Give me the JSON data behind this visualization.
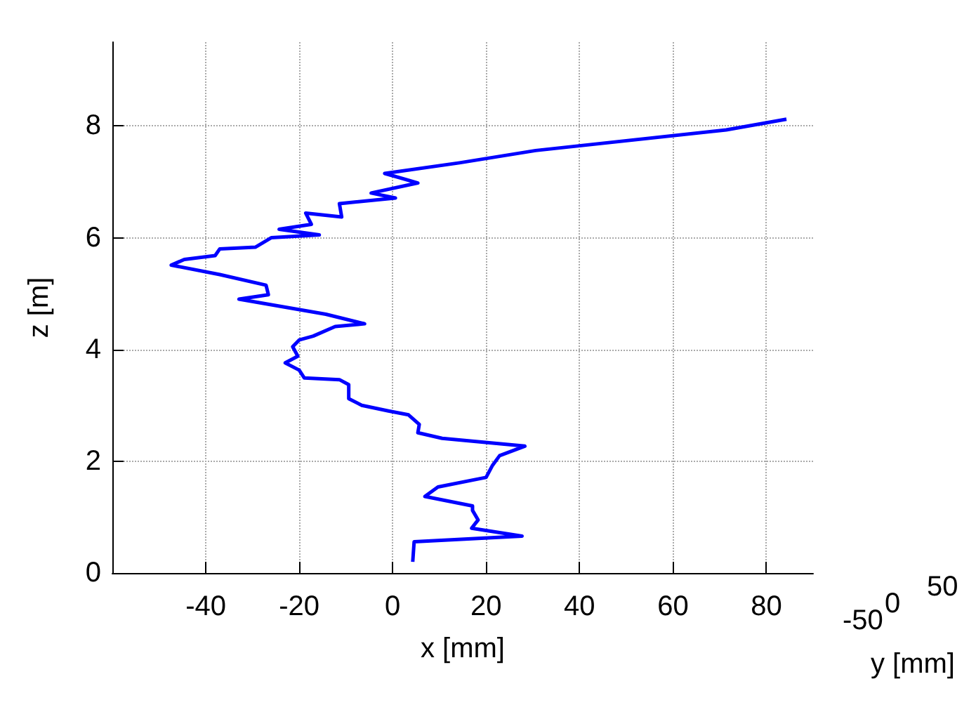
{
  "chart_data": {
    "type": "line",
    "xlabel": "x [mm]",
    "ylabel": "z [m]",
    "xlim": [
      -60,
      90
    ],
    "xticks": [
      -40,
      -20,
      0,
      20,
      40,
      60,
      80
    ],
    "ylim": [
      0,
      9.5
    ],
    "yticks": [
      0,
      2,
      4,
      6,
      8
    ],
    "grid": true,
    "marker": "none",
    "line_style": "solid",
    "annotations": [
      "-50",
      "0",
      "50",
      "y [mm]"
    ],
    "series": [
      {
        "color": "#0000ff",
        "x": [
          4.3,
          4.6,
          27.7,
          16.9,
          18.3,
          17.1,
          17.1,
          6.9,
          9.7,
          20,
          21.4,
          22.9,
          28.3,
          10.6,
          5.4,
          5.7,
          3.4,
          -0.9,
          -6.6,
          -9.4,
          -9.4,
          -11.4,
          -18.9,
          -20,
          -23,
          -20.3,
          -21.4,
          -20,
          -17,
          -12.3,
          -6,
          -14.3,
          -32.9,
          -26.6,
          -27.1,
          -37,
          -47.4,
          -44.6,
          -38,
          -37,
          -29.4,
          -26,
          -15.7,
          -24.3,
          -17.4,
          -18.6,
          -10.9,
          -11.4,
          0.6,
          -4.6,
          5.4,
          -1.7,
          14.3,
          30.6,
          71.4,
          84.3
        ],
        "values": [
          0.2,
          0.56,
          0.66,
          0.8,
          0.95,
          1.12,
          1.2,
          1.37,
          1.54,
          1.71,
          1.93,
          2.1,
          2.27,
          2.41,
          2.51,
          2.66,
          2.83,
          2.9,
          3.0,
          3.12,
          3.37,
          3.46,
          3.49,
          3.63,
          3.76,
          3.88,
          4.05,
          4.17,
          4.24,
          4.41,
          4.46,
          4.63,
          4.9,
          4.98,
          5.15,
          5.34,
          5.51,
          5.61,
          5.68,
          5.8,
          5.83,
          6.0,
          6.05,
          6.15,
          6.24,
          6.44,
          6.37,
          6.61,
          6.71,
          6.8,
          6.98,
          7.15,
          7.34,
          7.56,
          7.93,
          8.12
        ]
      }
    ]
  }
}
